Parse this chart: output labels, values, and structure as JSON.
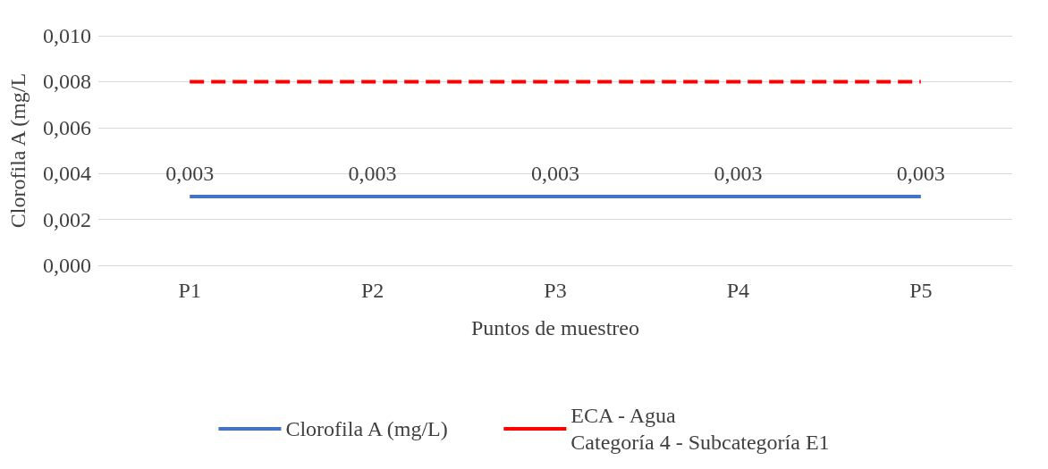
{
  "chart_data": {
    "type": "line",
    "xlabel": "Puntos de muestreo",
    "ylabel": "Clorofila A (mg/L",
    "categories": [
      "P1",
      "P2",
      "P3",
      "P4",
      "P5"
    ],
    "series": [
      {
        "name": "Clorofila A (mg/L)",
        "color": "#4472c4",
        "values": [
          0.003,
          0.003,
          0.003,
          0.003,
          0.003
        ],
        "line_style": "solid",
        "value_labels": [
          "0,003",
          "0,003",
          "0,003",
          "0,003",
          "0,003"
        ]
      },
      {
        "name": "ECA - Agua\nCategoría 4 - Subcategoría E1",
        "color": "#ff0000",
        "values": [
          0.008,
          0.008,
          0.008,
          0.008,
          0.008
        ],
        "line_style": "dashed"
      }
    ],
    "ylim": [
      0,
      0.01
    ],
    "yticks": [
      {
        "value": 0,
        "label": "0,000"
      },
      {
        "value": 0.002,
        "label": "0,002"
      },
      {
        "value": 0.004,
        "label": "0,004"
      },
      {
        "value": 0.006,
        "label": "0,006"
      },
      {
        "value": 0.008,
        "label": "0,008"
      },
      {
        "value": 0.01,
        "label": "0,010"
      }
    ],
    "grid": "y",
    "legend": "bottom",
    "marker": "none"
  }
}
